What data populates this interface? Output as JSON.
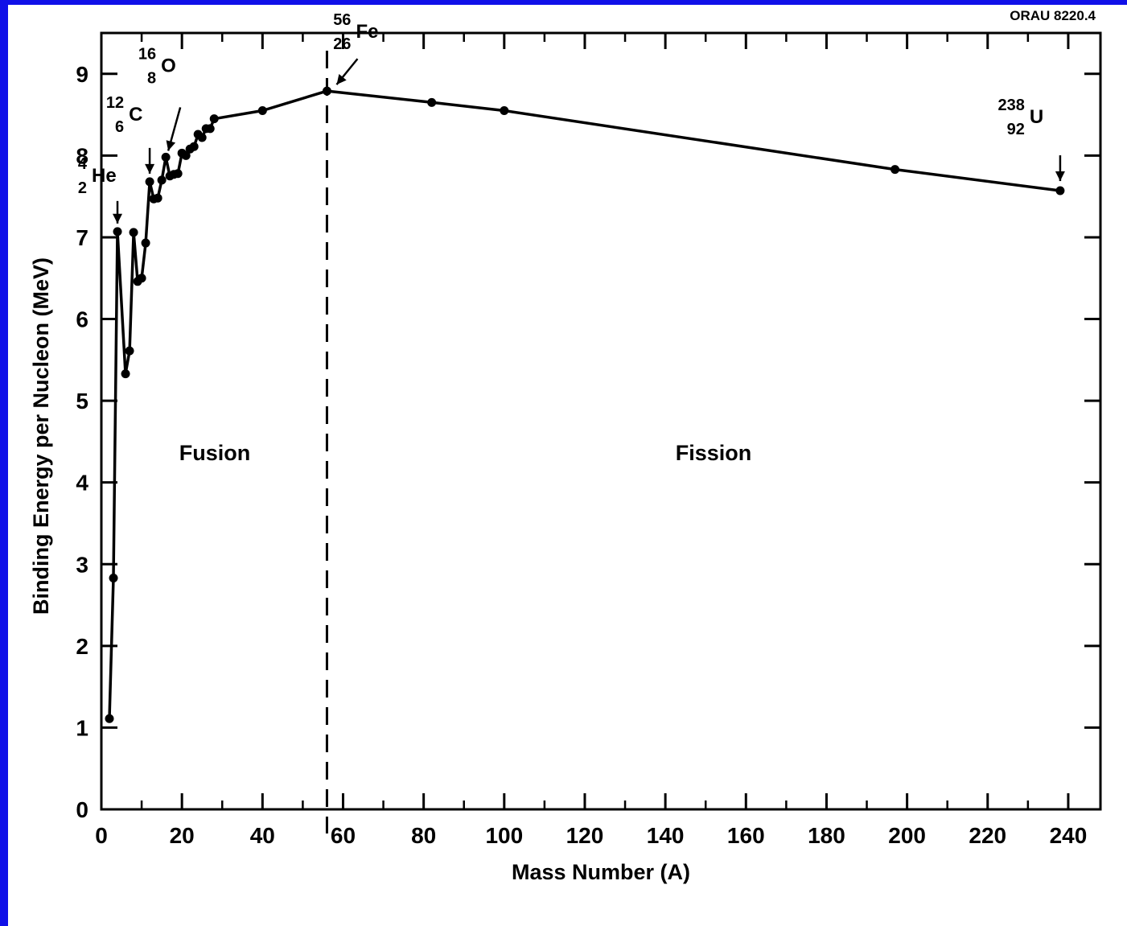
{
  "figure_id": "ORAU 8220.4",
  "colors": {
    "frame": "#1010e8",
    "paper": "#ffffff",
    "ink": "#000000"
  },
  "chart_data": {
    "type": "line",
    "title": "",
    "xlabel": "Mass Number (A)",
    "ylabel": "Binding Energy per Nucleon (MeV)",
    "xlim": [
      0,
      248
    ],
    "ylim": [
      0,
      9.5
    ],
    "xticks": [
      0,
      20,
      40,
      60,
      80,
      100,
      120,
      140,
      160,
      180,
      200,
      220,
      240
    ],
    "yticks": [
      0,
      1,
      2,
      3,
      4,
      5,
      6,
      7,
      8,
      9
    ],
    "grid": false,
    "legend": "none",
    "series": [
      {
        "x": [
          2,
          3,
          4,
          6,
          7,
          8,
          9,
          10,
          11,
          12,
          13,
          14,
          15,
          16,
          17,
          18,
          19,
          20,
          21,
          22,
          23,
          24,
          25,
          26,
          27,
          28,
          40,
          56,
          82,
          100,
          197,
          238
        ],
        "y": [
          1.11,
          2.83,
          7.07,
          5.33,
          5.61,
          7.06,
          6.46,
          6.5,
          6.93,
          7.68,
          7.47,
          7.48,
          7.7,
          7.98,
          7.75,
          7.77,
          7.78,
          8.03,
          8.0,
          8.08,
          8.11,
          8.26,
          8.22,
          8.33,
          8.33,
          8.45,
          8.55,
          8.79,
          8.65,
          8.55,
          7.83,
          7.57
        ]
      }
    ],
    "divider": {
      "x": 56
    },
    "region_labels": [
      {
        "text": "Fusion"
      },
      {
        "text": "Fission"
      }
    ],
    "annotations": [
      {
        "mass": "4",
        "atomic": "2",
        "symbol": "He",
        "x": 4,
        "y": 7.07
      },
      {
        "mass": "12",
        "atomic": "6",
        "symbol": "C",
        "x": 12,
        "y": 7.68
      },
      {
        "mass": "16",
        "atomic": "8",
        "symbol": "O",
        "x": 16,
        "y": 7.98
      },
      {
        "mass": "56",
        "atomic": "26",
        "symbol": "Fe",
        "x": 56,
        "y": 8.79
      },
      {
        "mass": "238",
        "atomic": "92",
        "symbol": "U",
        "x": 238,
        "y": 7.57
      }
    ]
  }
}
